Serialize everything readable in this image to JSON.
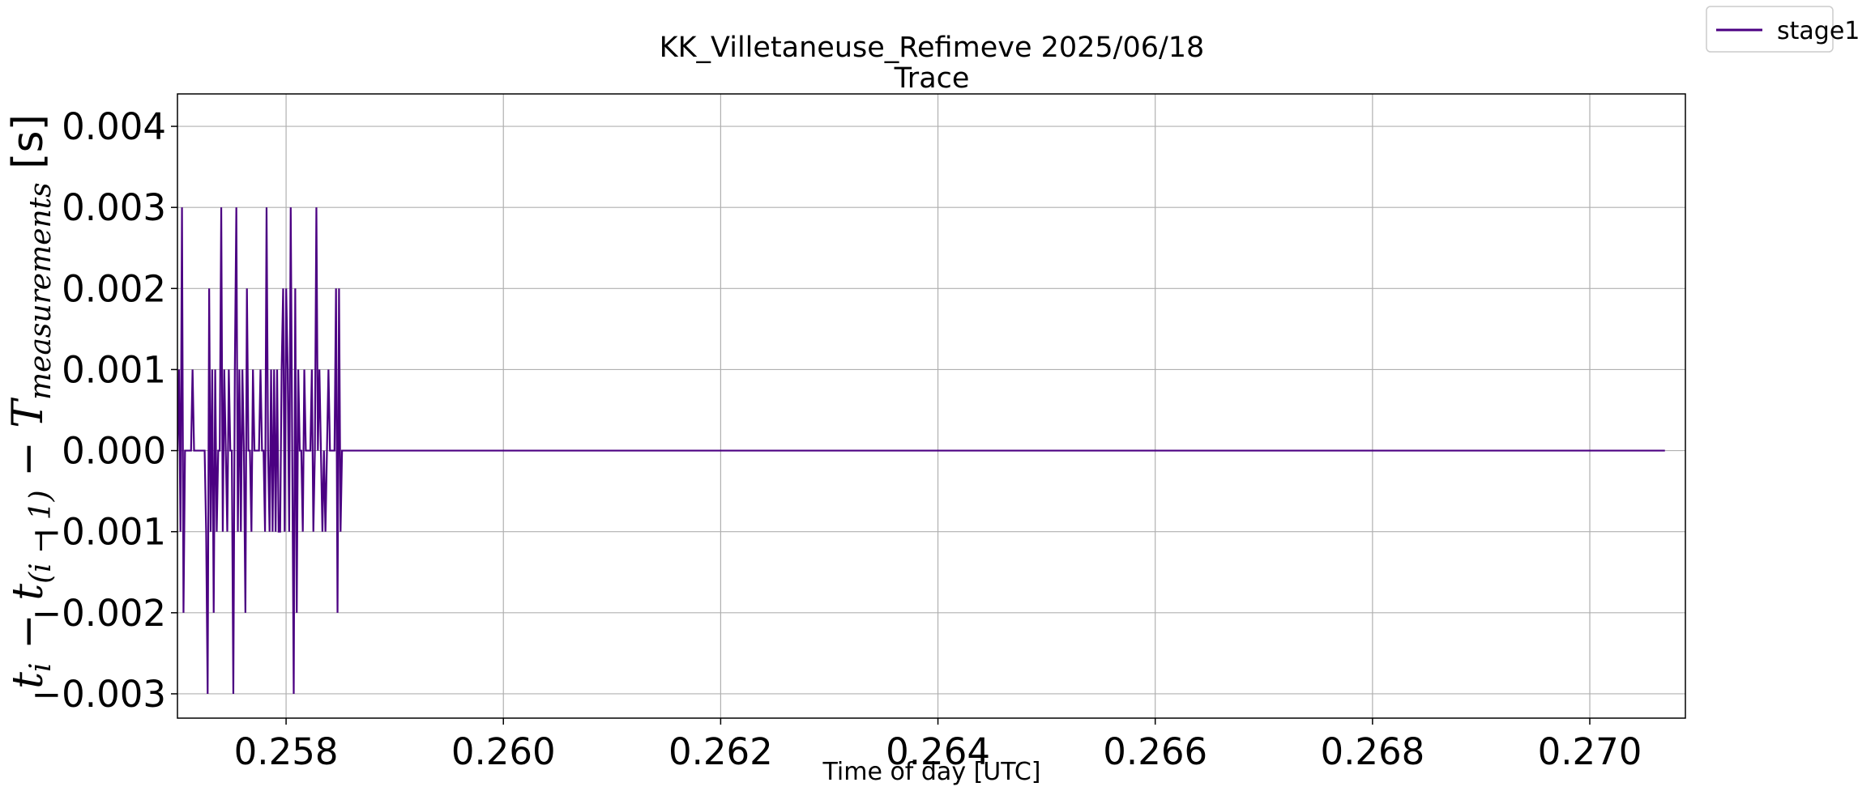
{
  "chart_data": {
    "type": "line",
    "title": "KK_Villetaneuse_Refimeve 2025/06/18",
    "subtitle": "Trace",
    "xlabel": "Time of day [UTC]",
    "ylabel": "t_i − t_(i−1) − T_measurements [s]",
    "xlim": [
      0.257,
      0.27088
    ],
    "ylim": [
      -0.0033,
      0.0044
    ],
    "xticks": [
      0.258,
      0.26,
      0.262,
      0.264,
      0.266,
      0.268,
      0.27
    ],
    "xtick_labels": [
      "0.258",
      "0.260",
      "0.262",
      "0.264",
      "0.266",
      "0.268",
      "0.270"
    ],
    "yticks": [
      -0.003,
      -0.002,
      -0.001,
      0.0,
      0.001,
      0.002,
      0.003,
      0.004
    ],
    "ytick_labels": [
      "−0.003",
      "−0.002",
      "−0.001",
      "0.000",
      "0.001",
      "0.002",
      "0.003",
      "0.004"
    ],
    "grid": true,
    "legend_position": "outside-top-right",
    "series": [
      {
        "name": "stage1",
        "color": "#4b0082",
        "x_start": 0.257,
        "x_step": 1.39e-05,
        "values": [
          0.0,
          0.001,
          -0.001,
          0.003,
          -0.002,
          0.0,
          0.0,
          0.0,
          0.0,
          0.0,
          0.001,
          0.0,
          0.0,
          0.0,
          0.0,
          0.0,
          0.0,
          0.0,
          0.0,
          -0.001,
          -0.003,
          0.002,
          -0.001,
          0.001,
          -0.002,
          0.001,
          -0.001,
          0.0,
          0.0,
          0.003,
          -0.001,
          0.001,
          0.0,
          -0.001,
          0.001,
          0.0,
          0.0,
          -0.003,
          0.001,
          0.003,
          -0.001,
          0.001,
          -0.001,
          0.001,
          0.0,
          -0.002,
          0.002,
          0.0,
          0.0,
          -0.001,
          0.001,
          0.0,
          0.0,
          0.0,
          0.0,
          0.001,
          0.0,
          0.0,
          -0.001,
          0.003,
          0.0,
          -0.001,
          0.001,
          -0.001,
          0.001,
          -0.001,
          0.001,
          -0.001,
          -0.001,
          0.001,
          0.002,
          -0.001,
          0.002,
          0.001,
          -0.001,
          0.003,
          0.0,
          -0.003,
          0.002,
          -0.002,
          0.001,
          0.0,
          0.0,
          -0.001,
          0.001,
          0.0,
          0.0,
          0.0,
          0.0,
          0.001,
          -0.001,
          0.0,
          0.003,
          0.0,
          0.001,
          0.0,
          -0.001,
          0.0,
          -0.001,
          0.0,
          0.001,
          0.0,
          0.0,
          0.0,
          0.0,
          0.002,
          -0.002,
          0.002,
          -0.001,
          0.0,
          0.0,
          0.0,
          0.0,
          0.0,
          0.0,
          0.0,
          0.0,
          0.0,
          0.0,
          0.0,
          0.0,
          0.0,
          0.0,
          0.0,
          0.0,
          0.0,
          0.0,
          0.0,
          0.0,
          0.0,
          0.0,
          0.0,
          0.0,
          0.0,
          0.0,
          0.0,
          0.0,
          0.0,
          0.0,
          0.0,
          0.0,
          0.0,
          0.0,
          0.0,
          0.0,
          0.0,
          0.0,
          0.0,
          0.0,
          0.0,
          0.0,
          0.0,
          0.0,
          0.0,
          0.0,
          0.0,
          0.0,
          0.0,
          0.0,
          0.0,
          0.0,
          0.0,
          0.0,
          0.0,
          0.0,
          0.0,
          0.0,
          0.0,
          0.0,
          0.0,
          0.0,
          0.0,
          0.0,
          0.0,
          0.0,
          0.0,
          0.0,
          0.0,
          0.0,
          0.0,
          0.0,
          0.0,
          0.0,
          0.0,
          0.0,
          0.0,
          0.0,
          0.0,
          0.0,
          0.0,
          0.0,
          0.0,
          0.0,
          0.0,
          0.0,
          0.0,
          0.0,
          0.0,
          0.0,
          0.0,
          0.0,
          0.0,
          0.0,
          0.0,
          0.0,
          0.0,
          0.0,
          0.0,
          0.0,
          0.0,
          0.0,
          0.0,
          0.0,
          0.0,
          0.0,
          0.0,
          0.0,
          0.0,
          0.0,
          0.0,
          0.0,
          0.0,
          0.0,
          0.0,
          0.0,
          0.0,
          0.0,
          0.0,
          0.0,
          0.0,
          0.0,
          0.0,
          0.0,
          0.0,
          0.0,
          0.0,
          0.0,
          0.0,
          0.0,
          0.0,
          0.0,
          0.0,
          0.0,
          0.0,
          0.0,
          0.0,
          0.0,
          0.0,
          0.0,
          0.0,
          0.0,
          0.0,
          0.0,
          0.0,
          0.0,
          0.0,
          0.0,
          0.0,
          0.0,
          0.0,
          0.0,
          0.0,
          0.0,
          0.0,
          0.0,
          0.0,
          0.0,
          0.0,
          0.0,
          0.0,
          0.0,
          0.0,
          0.0,
          0.0,
          0.0,
          0.0,
          0.0,
          0.0,
          0.0,
          0.0,
          0.0,
          0.0,
          0.0,
          0.0,
          0.0,
          0.0,
          0.0,
          0.0,
          0.0,
          0.0,
          0.0,
          0.0,
          0.0,
          0.0,
          0.0,
          0.0,
          0.0,
          0.0,
          0.0,
          0.0,
          0.0,
          0.0,
          0.0,
          0.0,
          0.0,
          0.0,
          0.0,
          0.0,
          0.0,
          0.0,
          0.0,
          0.0,
          0.0,
          0.0,
          0.0,
          0.0,
          0.0,
          0.0,
          0.0,
          0.0,
          0.0,
          0.0,
          0.0,
          0.0,
          0.0,
          0.0,
          0.0,
          0.0,
          0.0,
          0.0,
          0.0,
          0.0,
          0.0,
          0.0,
          0.0,
          0.0,
          0.0,
          0.0,
          0.0,
          0.0,
          0.0,
          0.0,
          0.0,
          0.0,
          0.0,
          0.0,
          0.0,
          0.0,
          0.0,
          0.0,
          0.0,
          0.0,
          0.0,
          0.0,
          0.0,
          0.0,
          0.0,
          0.0,
          0.0,
          0.0,
          0.0,
          0.0,
          0.0,
          0.0,
          0.0,
          0.0,
          0.0,
          0.0,
          0.0,
          0.0,
          0.0,
          0.0,
          0.0,
          0.0,
          0.0,
          0.0,
          0.0,
          0.0,
          0.0,
          0.0,
          0.0,
          0.0,
          0.0,
          0.0,
          0.0,
          0.0,
          0.0,
          0.0,
          0.0,
          0.0,
          0.0,
          0.0,
          0.0,
          0.0,
          0.0,
          0.0,
          0.0,
          0.0,
          0.0,
          0.0,
          0.0,
          0.0,
          0.0,
          0.0,
          0.0,
          0.0,
          0.0,
          0.0,
          0.0,
          0.0,
          0.0,
          0.0,
          0.0,
          0.0,
          0.0,
          0.0,
          0.0,
          0.0,
          0.0,
          0.0,
          0.0,
          0.0,
          0.0,
          0.0,
          0.0,
          0.0,
          0.0,
          0.0,
          0.0,
          0.0,
          0.0,
          0.0,
          0.0,
          0.0,
          0.0,
          0.0,
          0.0,
          0.0,
          0.0,
          0.0,
          0.0,
          0.0,
          0.0,
          0.0,
          0.0,
          0.0,
          0.0,
          0.0,
          0.0,
          0.0,
          0.0,
          0.0,
          0.0,
          0.0,
          0.0,
          0.0,
          0.0,
          0.0,
          0.0,
          0.0,
          0.0,
          0.0,
          0.0,
          0.0,
          0.0,
          0.0,
          0.0,
          0.0,
          0.0,
          0.0,
          0.0,
          0.0,
          0.0,
          0.0,
          0.0,
          0.0,
          0.0,
          0.0,
          0.0,
          0.0,
          0.0,
          0.0,
          0.0,
          0.0,
          0.0,
          0.0,
          0.0,
          0.0,
          0.0,
          0.0,
          0.0,
          0.0,
          0.0,
          0.0,
          0.0,
          0.0,
          0.0,
          0.0,
          0.0,
          0.0,
          0.0,
          0.0,
          0.0,
          0.0,
          0.0,
          0.0,
          0.0,
          0.0,
          0.0,
          0.0,
          0.0,
          0.0,
          0.0,
          0.0,
          0.0,
          0.0,
          0.0,
          0.0,
          0.0,
          0.0,
          0.0,
          0.0,
          0.0,
          0.0,
          0.0,
          0.0,
          0.0,
          0.0,
          0.0,
          0.0,
          0.0,
          0.0,
          0.0,
          0.0,
          0.0,
          0.0,
          0.0,
          0.0,
          0.0,
          0.0,
          0.0,
          0.0,
          0.0,
          0.0,
          0.0,
          0.0,
          0.0,
          0.0,
          0.0,
          0.0,
          0.0,
          0.0,
          0.0,
          0.0,
          0.0,
          0.0,
          0.0,
          0.0,
          0.0,
          0.0,
          0.0,
          0.0,
          0.0,
          0.0,
          0.0,
          0.0,
          0.0,
          0.0,
          0.0,
          0.0,
          0.0,
          0.0,
          0.0,
          0.0,
          0.0,
          0.0,
          0.0,
          0.0,
          0.0,
          0.0,
          0.0,
          0.0,
          0.0,
          0.0,
          0.0,
          0.0,
          0.0,
          0.0,
          0.0,
          0.0,
          0.0,
          0.0,
          0.0,
          0.0,
          0.0,
          0.0,
          0.0,
          0.0,
          0.0,
          0.0,
          0.0,
          0.0,
          0.0,
          0.0,
          0.0,
          0.0,
          0.0,
          0.0,
          0.0,
          0.0,
          0.0,
          0.0,
          0.0,
          0.0,
          0.0,
          0.0,
          0.0,
          0.0,
          0.0,
          0.0,
          0.0,
          0.0,
          0.0,
          0.0,
          0.0,
          0.0,
          0.0,
          0.0,
          0.0,
          0.0,
          0.0,
          0.0,
          0.0,
          0.0,
          0.0,
          0.0,
          0.0,
          0.0,
          0.0,
          0.0,
          0.0,
          0.0,
          0.0,
          0.0,
          0.0,
          0.0,
          0.0,
          0.0,
          0.0,
          0.0,
          0.0,
          0.0,
          0.0,
          0.0,
          0.0,
          0.0,
          0.0,
          0.0,
          0.0,
          0.0,
          0.0,
          0.0,
          0.0,
          0.0,
          0.0,
          0.0,
          0.0,
          0.0,
          0.0,
          0.0,
          0.0,
          0.0,
          0.0,
          0.0,
          0.0,
          0.0,
          0.0,
          0.0,
          0.0,
          0.0,
          0.0,
          0.0,
          0.0,
          0.0,
          0.0,
          0.0,
          0.0,
          0.0,
          0.0,
          0.0,
          0.0,
          0.0,
          0.0,
          0.0,
          0.0,
          0.0,
          0.0,
          0.0,
          0.0,
          0.0,
          0.0,
          0.0,
          0.0,
          0.0,
          0.0,
          0.0,
          0.0,
          0.0,
          0.0,
          0.0,
          0.0,
          0.0,
          0.0,
          0.0,
          0.0,
          0.0,
          0.0,
          0.0,
          0.0,
          0.0,
          0.0,
          0.0,
          0.0,
          0.0,
          0.0,
          0.0,
          0.0,
          0.0,
          0.0,
          0.0,
          0.0,
          0.0,
          0.0,
          0.0,
          0.0,
          0.0,
          0.0,
          0.0,
          0.0,
          0.0,
          0.0,
          0.0,
          0.0,
          0.0,
          0.0,
          0.0,
          0.0,
          0.0,
          0.0,
          0.0,
          0.0,
          0.0,
          0.0,
          0.0,
          0.0,
          0.0,
          0.0,
          0.0,
          0.0,
          0.0,
          0.0,
          0.0,
          0.0,
          0.0,
          0.0,
          0.0,
          0.0,
          0.0,
          0.0,
          0.0,
          0.0,
          0.0,
          0.0,
          0.0,
          0.0,
          0.0,
          0.0,
          0.0,
          0.0,
          0.0,
          0.0,
          0.0,
          0.0,
          0.0,
          0.0,
          0.0,
          0.0,
          0.0,
          0.0,
          0.0,
          0.0,
          0.0,
          0.0,
          0.0,
          0.0,
          0.0,
          0.0,
          0.0,
          0.0,
          0.0,
          0.0,
          0.0,
          0.0,
          0.0,
          0.0,
          0.0,
          0.0,
          0.0,
          0.0,
          0.0,
          0.0,
          0.0,
          0.0,
          0.0,
          0.0,
          0.0,
          0.0,
          0.0,
          0.0,
          0.0,
          0.0,
          0.0,
          0.0,
          0.0,
          0.0,
          0.0,
          0.0,
          0.0,
          0.0,
          0.0,
          0.0,
          0.0,
          0.0,
          0.0,
          0.0,
          0.0,
          0.0,
          0.0,
          0.0,
          0.0,
          0.0,
          0.0,
          0.0,
          0.0,
          0.0,
          0.0,
          0.0,
          0.0,
          0.0,
          0.0,
          0.0,
          0.0,
          0.0,
          0.0,
          0.0,
          0.0,
          0.0,
          0.0,
          0.0,
          0.0,
          0.0,
          0.0,
          0.0,
          0.0,
          0.0,
          0.0,
          0.0,
          0.0,
          0.0,
          0.0,
          0.0,
          0.0,
          0.0,
          0.0,
          0.0,
          0.0,
          0.0,
          0.0,
          0.0,
          0.0,
          0.0,
          0.0,
          0.0,
          0.0,
          0.0,
          0.0,
          0.0,
          0.0,
          0.0,
          0.0,
          0.0,
          0.0,
          0.0,
          0.0,
          0.0,
          0.0,
          0.0,
          0.0,
          0.0,
          0.0,
          0.0,
          0.0,
          0.0,
          0.0,
          0.0,
          0.0,
          0.0,
          0.0,
          0.0,
          0.0,
          0.0,
          0.0,
          0.0,
          0.0,
          0.0,
          0.0,
          0.0,
          0.0,
          0.0,
          0.0,
          0.0,
          0.0,
          0.0,
          0.0,
          0.0,
          0.0,
          0.0,
          0.0,
          0.0,
          0.0,
          0.0,
          0.0,
          0.0,
          0.0,
          0.0,
          0.0,
          0.0,
          0.0,
          0.0,
          0.0,
          0.0,
          0.0,
          0.0,
          0.0,
          0.0,
          0.0,
          0.0,
          0.0,
          0.0,
          0.0,
          0.0,
          0.0,
          0.0,
          0.0,
          0.0,
          0.0,
          0.0,
          0.0,
          0.0,
          0.0,
          0.0,
          0.0,
          0.0,
          0.0,
          0.0,
          0.0,
          0.0,
          0.0,
          0.0,
          0.0,
          0.0,
          0.0,
          0.0,
          0.0,
          0.0,
          0.0,
          0.0,
          0.0,
          0.0,
          0.0,
          0.0,
          0.0,
          0.0,
          0.0,
          0.0,
          0.0
        ]
      }
    ]
  }
}
